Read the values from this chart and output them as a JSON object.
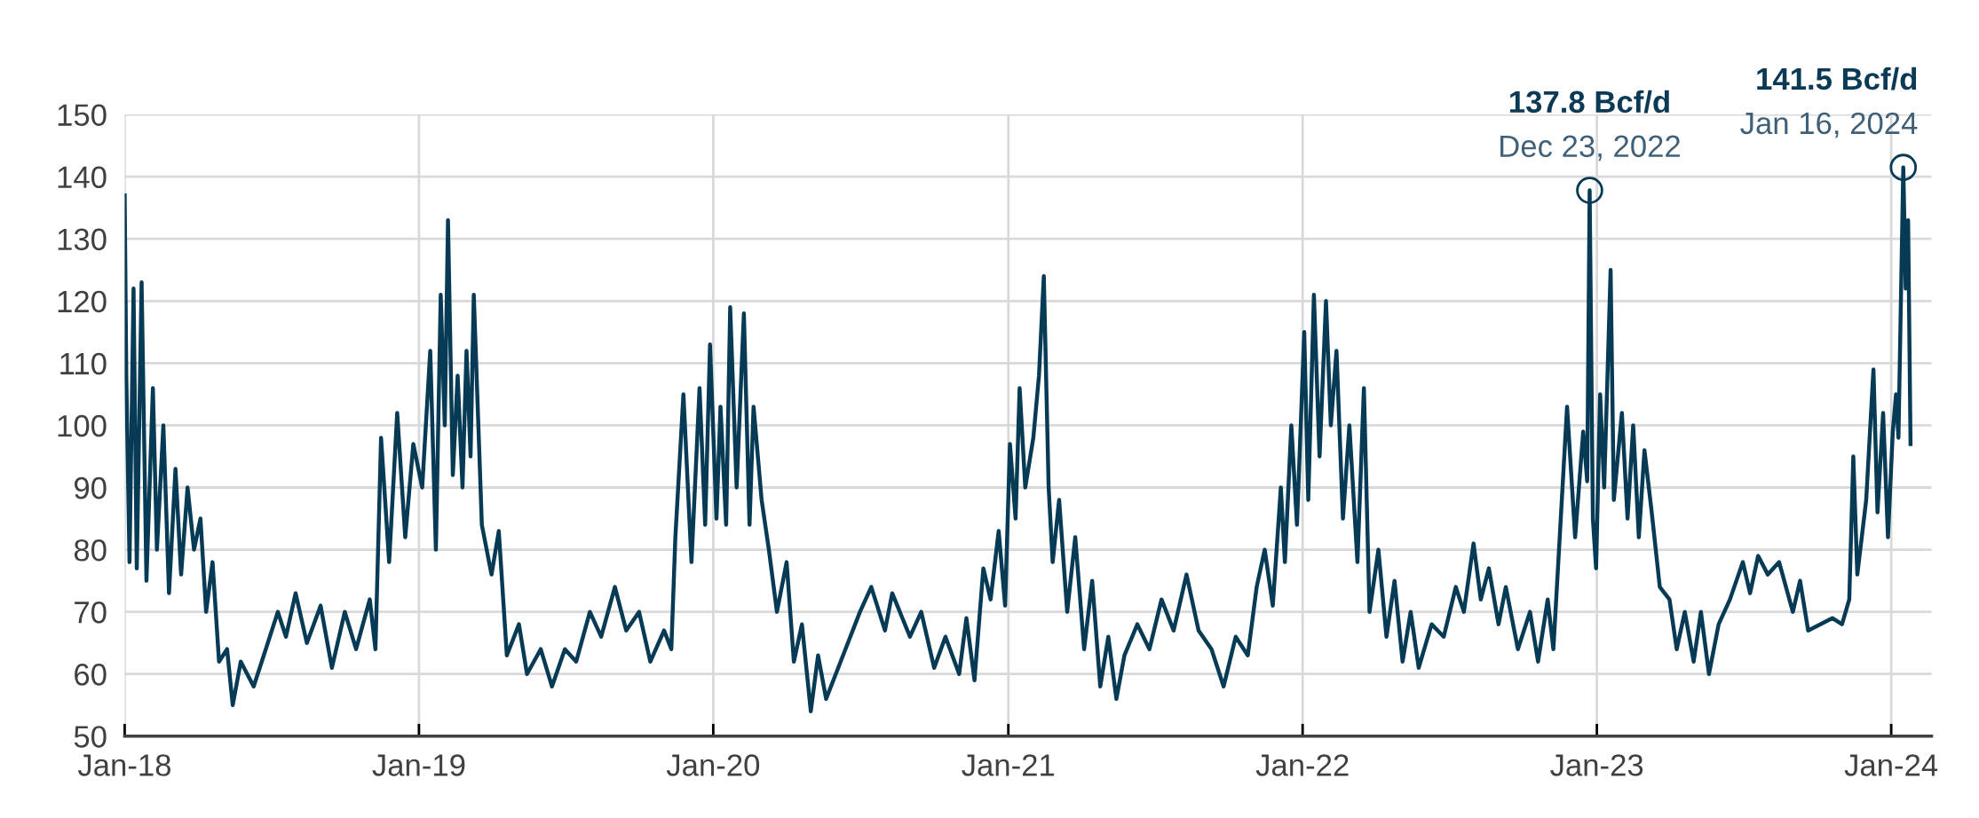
{
  "chart_data": {
    "type": "line",
    "x": [
      "2018-01-01",
      "2018-01-03",
      "2018-01-07",
      "2018-01-12",
      "2018-01-16",
      "2018-01-22",
      "2018-01-28",
      "2018-02-05",
      "2018-02-10",
      "2018-02-18",
      "2018-02-25",
      "2018-03-05",
      "2018-03-12",
      "2018-03-20",
      "2018-03-28",
      "2018-04-05",
      "2018-04-12",
      "2018-04-20",
      "2018-04-28",
      "2018-05-08",
      "2018-05-15",
      "2018-05-25",
      "2018-06-10",
      "2018-06-25",
      "2018-07-10",
      "2018-07-20",
      "2018-08-01",
      "2018-08-15",
      "2018-09-01",
      "2018-09-15",
      "2018-10-01",
      "2018-10-15",
      "2018-11-01",
      "2018-11-08",
      "2018-11-15",
      "2018-11-25",
      "2018-12-05",
      "2018-12-15",
      "2018-12-25",
      "2019-01-05",
      "2019-01-15",
      "2019-01-22",
      "2019-01-28",
      "2019-02-02",
      "2019-02-06",
      "2019-02-12",
      "2019-02-18",
      "2019-02-24",
      "2019-03-01",
      "2019-03-06",
      "2019-03-10",
      "2019-03-20",
      "2019-04-01",
      "2019-04-10",
      "2019-04-20",
      "2019-05-05",
      "2019-05-15",
      "2019-06-01",
      "2019-06-15",
      "2019-07-01",
      "2019-07-15",
      "2019-08-01",
      "2019-08-15",
      "2019-09-01",
      "2019-09-15",
      "2019-10-01",
      "2019-10-15",
      "2019-11-01",
      "2019-11-10",
      "2019-11-15",
      "2019-11-25",
      "2019-12-05",
      "2019-12-15",
      "2019-12-22",
      "2019-12-28",
      "2020-01-05",
      "2020-01-10",
      "2020-01-17",
      "2020-01-22",
      "2020-01-30",
      "2020-02-08",
      "2020-02-15",
      "2020-02-20",
      "2020-03-01",
      "2020-03-10",
      "2020-03-20",
      "2020-04-01",
      "2020-04-10",
      "2020-04-20",
      "2020-05-01",
      "2020-05-10",
      "2020-05-20",
      "2020-06-10",
      "2020-07-01",
      "2020-07-15",
      "2020-08-01",
      "2020-08-10",
      "2020-09-01",
      "2020-09-15",
      "2020-10-01",
      "2020-10-15",
      "2020-11-01",
      "2020-11-10",
      "2020-11-20",
      "2020-12-01",
      "2020-12-10",
      "2020-12-20",
      "2020-12-28",
      "2021-01-03",
      "2021-01-10",
      "2021-01-15",
      "2021-01-22",
      "2021-02-01",
      "2021-02-08",
      "2021-02-14",
      "2021-02-20",
      "2021-02-25",
      "2021-03-05",
      "2021-03-15",
      "2021-03-25",
      "2021-04-05",
      "2021-04-15",
      "2021-04-25",
      "2021-05-05",
      "2021-05-15",
      "2021-05-25",
      "2021-06-10",
      "2021-06-25",
      "2021-07-10",
      "2021-07-25",
      "2021-08-10",
      "2021-08-25",
      "2021-09-10",
      "2021-09-25",
      "2021-10-10",
      "2021-10-25",
      "2021-11-05",
      "2021-11-15",
      "2021-11-25",
      "2021-12-05",
      "2021-12-10",
      "2021-12-18",
      "2021-12-25",
      "2022-01-03",
      "2022-01-08",
      "2022-01-15",
      "2022-01-22",
      "2022-01-30",
      "2022-02-05",
      "2022-02-12",
      "2022-02-20",
      "2022-02-28",
      "2022-03-10",
      "2022-03-18",
      "2022-03-25",
      "2022-04-05",
      "2022-04-15",
      "2022-04-25",
      "2022-05-05",
      "2022-05-15",
      "2022-05-25",
      "2022-06-10",
      "2022-06-25",
      "2022-07-10",
      "2022-07-20",
      "2022-08-01",
      "2022-08-10",
      "2022-08-20",
      "2022-09-01",
      "2022-09-10",
      "2022-09-25",
      "2022-10-10",
      "2022-10-20",
      "2022-11-01",
      "2022-11-08",
      "2022-11-15",
      "2022-11-25",
      "2022-12-05",
      "2022-12-15",
      "2022-12-20",
      "2022-12-23",
      "2022-12-27",
      "2022-12-31",
      "2023-01-05",
      "2023-01-10",
      "2023-01-18",
      "2023-01-22",
      "2023-02-01",
      "2023-02-08",
      "2023-02-15",
      "2023-02-22",
      "2023-03-01",
      "2023-03-10",
      "2023-03-20",
      "2023-04-01",
      "2023-04-10",
      "2023-04-20",
      "2023-05-01",
      "2023-05-10",
      "2023-05-20",
      "2023-06-01",
      "2023-06-15",
      "2023-07-01",
      "2023-07-10",
      "2023-07-20",
      "2023-08-01",
      "2023-08-15",
      "2023-09-01",
      "2023-09-10",
      "2023-09-20",
      "2023-10-05",
      "2023-10-20",
      "2023-11-01",
      "2023-11-10",
      "2023-11-15",
      "2023-11-20",
      "2023-12-01",
      "2023-12-10",
      "2023-12-15",
      "2023-12-22",
      "2023-12-28",
      "2024-01-03",
      "2024-01-07",
      "2024-01-10",
      "2024-01-16",
      "2024-01-19",
      "2024-01-22",
      "2024-01-25"
    ],
    "series": [
      {
        "color": "#063a55",
        "values": [
          137,
          108,
          78,
          122,
          77,
          123,
          75,
          106,
          80,
          100,
          73,
          93,
          76,
          90,
          80,
          85,
          70,
          78,
          62,
          64,
          55,
          62,
          58,
          64,
          70,
          66,
          73,
          65,
          71,
          61,
          70,
          64,
          72,
          64,
          98,
          78,
          102,
          82,
          97,
          90,
          112,
          80,
          121,
          100,
          133,
          92,
          108,
          90,
          112,
          95,
          121,
          84,
          76,
          83,
          63,
          68,
          60,
          64,
          58,
          64,
          62,
          70,
          66,
          74,
          67,
          70,
          62,
          67,
          64,
          82,
          105,
          78,
          106,
          84,
          113,
          85,
          103,
          84,
          119,
          90,
          118,
          84,
          103,
          88,
          80,
          70,
          78,
          62,
          68,
          54,
          63,
          56,
          63,
          70,
          74,
          67,
          73,
          66,
          70,
          61,
          66,
          60,
          69,
          59,
          77,
          72,
          83,
          71,
          97,
          85,
          106,
          90,
          98,
          108,
          124,
          90,
          78,
          88,
          70,
          82,
          64,
          75,
          58,
          66,
          56,
          63,
          68,
          64,
          72,
          67,
          76,
          67,
          64,
          58,
          66,
          63,
          74,
          80,
          71,
          90,
          78,
          100,
          84,
          115,
          88,
          121,
          95,
          120,
          100,
          112,
          85,
          100,
          78,
          106,
          70,
          80,
          66,
          75,
          62,
          70,
          61,
          68,
          66,
          74,
          70,
          81,
          72,
          77,
          68,
          74,
          64,
          70,
          62,
          72,
          64,
          80,
          103,
          82,
          99,
          91,
          137.8,
          85,
          77,
          105,
          90,
          125,
          88,
          102,
          85,
          100,
          82,
          96,
          86,
          74,
          72,
          64,
          70,
          62,
          70,
          60,
          68,
          72,
          78,
          73,
          79,
          76,
          78,
          70,
          75,
          67,
          68,
          69,
          68,
          72,
          95,
          76,
          88,
          109,
          86,
          102,
          82,
          99,
          105,
          98,
          141.5,
          122,
          133,
          97
        ]
      }
    ],
    "xlim": [
      "2018-01-01",
      "2024-02-20"
    ],
    "xticks": [
      {
        "value": "2018-01-01",
        "label": "Jan-18"
      },
      {
        "value": "2019-01-01",
        "label": "Jan-19"
      },
      {
        "value": "2020-01-01",
        "label": "Jan-20"
      },
      {
        "value": "2021-01-01",
        "label": "Jan-21"
      },
      {
        "value": "2022-01-01",
        "label": "Jan-22"
      },
      {
        "value": "2023-01-01",
        "label": "Jan-23"
      },
      {
        "value": "2024-01-01",
        "label": "Jan-24"
      }
    ],
    "ylim": [
      50,
      150
    ],
    "yticks": [
      50,
      60,
      70,
      80,
      90,
      100,
      110,
      120,
      130,
      140,
      150
    ],
    "grid": true,
    "line_style": "solid",
    "annotations": [
      {
        "text": "137.8 Bcf/d\nDec 23, 2022",
        "x": "2022-12-23",
        "y": 137.8
      },
      {
        "text": "141.5 Bcf/d\nJan 16, 2024",
        "x": "2024-01-16",
        "y": 141.5
      }
    ]
  }
}
